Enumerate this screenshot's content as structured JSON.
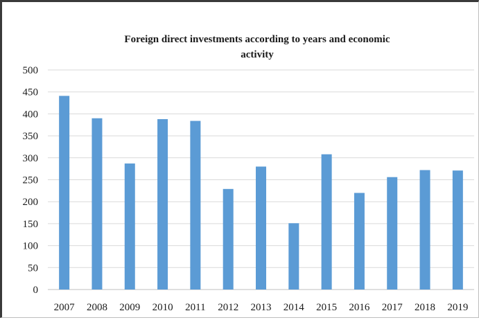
{
  "chart_data": {
    "type": "bar",
    "title_lines": [
      "Foreign direct investments according to years and economic",
      "activity"
    ],
    "categories": [
      "2007",
      "2008",
      "2009",
      "2010",
      "2011",
      "2012",
      "2013",
      "2014",
      "2015",
      "2016",
      "2017",
      "2018",
      "2019"
    ],
    "values": [
      441,
      390,
      287,
      388,
      384,
      229,
      280,
      151,
      308,
      220,
      256,
      272,
      271
    ],
    "ylim": [
      0,
      500
    ],
    "yticks": [
      0,
      50,
      100,
      150,
      200,
      250,
      300,
      350,
      400,
      450,
      500
    ],
    "xlabel": "",
    "ylabel": "",
    "grid": true,
    "legend": "none",
    "bar_color": "#5b9bd5"
  }
}
